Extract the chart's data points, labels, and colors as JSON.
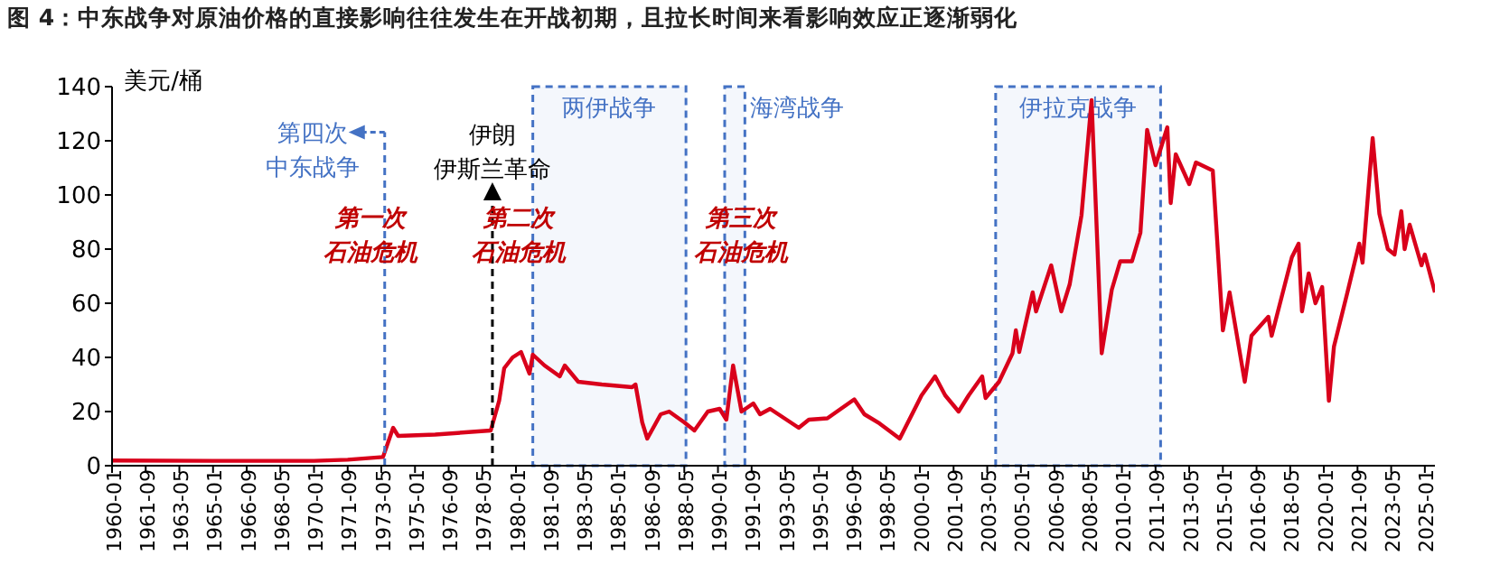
{
  "chart_data": {
    "type": "line",
    "title": "图 4：中东战争对原油价格的直接影响往往发生在开战初期，且拉长时间来看影响效应正逐渐弱化",
    "ylabel": "美元/桶",
    "x": [
      "1960-01",
      "1965-01",
      "1970-01",
      "1971-09",
      "1973-06",
      "1973-12",
      "1974-03",
      "1976-01",
      "1978-10",
      "1979-03",
      "1979-06",
      "1979-11",
      "1980-04",
      "1980-09",
      "1980-11",
      "1981-06",
      "1982-03",
      "1982-06",
      "1983-02",
      "1984-04",
      "1985-10",
      "1985-12",
      "1986-04",
      "1986-07",
      "1987-03",
      "1987-08",
      "1988-05",
      "1988-11",
      "1989-07",
      "1990-02",
      "1990-06",
      "1990-10",
      "1991-03",
      "1991-10",
      "1992-02",
      "1992-08",
      "1994-01",
      "1994-07",
      "1995-06",
      "1996-10",
      "1997-04",
      "1998-01",
      "1999-01",
      "2000-02",
      "2000-10",
      "2001-04",
      "2001-12",
      "2002-06",
      "2003-02",
      "2003-04",
      "2003-12",
      "2004-08",
      "2004-10",
      "2004-12",
      "2005-08",
      "2005-10",
      "2006-07",
      "2007-01",
      "2007-06",
      "2007-09",
      "2008-01",
      "2008-07",
      "2009-01",
      "2009-07",
      "2009-12",
      "2010-07",
      "2010-12",
      "2011-04",
      "2011-09",
      "2012-04",
      "2012-06",
      "2012-09",
      "2013-05",
      "2013-09",
      "2014-07",
      "2015-01",
      "2015-05",
      "2016-02",
      "2016-06",
      "2017-04",
      "2017-06",
      "2018-06",
      "2018-10",
      "2018-12",
      "2019-04",
      "2019-08",
      "2019-12",
      "2020-04",
      "2020-07",
      "2021-03",
      "2021-10",
      "2021-12",
      "2022-04",
      "2022-06",
      "2022-10",
      "2023-03",
      "2023-07",
      "2023-11",
      "2024-01",
      "2024-04",
      "2024-11",
      "2025-01",
      "2025-07"
    ],
    "series": [
      {
        "color": "#d9001b",
        "values": [
          1.9,
          1.8,
          1.8,
          2.2,
          3.2,
          14,
          11,
          11.5,
          13,
          24,
          36,
          40,
          42,
          34,
          41,
          37,
          33,
          37,
          31,
          30,
          29,
          30,
          16,
          10,
          19,
          20,
          16,
          13,
          20,
          21,
          17,
          37,
          20,
          23,
          19,
          21,
          14,
          17,
          17.5,
          24.5,
          19,
          15.6,
          10,
          26,
          33,
          26,
          20,
          26,
          33,
          25,
          31,
          41.5,
          50,
          42,
          64,
          57,
          74,
          57,
          67,
          78,
          92.5,
          135,
          41.5,
          65,
          75.5,
          75.5,
          86,
          124,
          111,
          125,
          97,
          115,
          104,
          112,
          109,
          50,
          64,
          31,
          48,
          55,
          48,
          77,
          82,
          57,
          71,
          60,
          66,
          24,
          44,
          64,
          82,
          75,
          106,
          121,
          93,
          80,
          78,
          94,
          80,
          89,
          74,
          78,
          64
        ]
      }
    ],
    "xlim": [
      "1960-01",
      "2025-07"
    ],
    "xticks": [
      "1960-01",
      "1961-09",
      "1963-05",
      "1965-01",
      "1966-09",
      "1968-05",
      "1970-01",
      "1971-09",
      "1973-05",
      "1975-01",
      "1976-09",
      "1978-05",
      "1980-01",
      "1981-09",
      "1983-05",
      "1985-01",
      "1986-09",
      "1988-05",
      "1990-01",
      "1991-09",
      "1993-05",
      "1995-01",
      "1996-09",
      "1998-05",
      "2000-01",
      "2001-09",
      "2003-05",
      "2005-01",
      "2006-09",
      "2008-05",
      "2010-01",
      "2011-09",
      "2013-05",
      "2015-01",
      "2016-09",
      "2018-05",
      "2020-01",
      "2021-09",
      "2023-05",
      "2025-01"
    ],
    "ylim": [
      0,
      140
    ],
    "yticks": [
      0,
      20,
      40,
      60,
      80,
      100,
      120,
      140
    ],
    "grid": false,
    "legend": false,
    "marker": "none",
    "line_style": "solid",
    "ref_lines": [
      {
        "axis": "x",
        "value": "1973-07",
        "label": "第四次中东战争",
        "color": "#4472c4",
        "line_style": "dashed"
      },
      {
        "axis": "x",
        "value": "1978-11",
        "label": "伊朗伊斯兰革命",
        "color": "#000000",
        "line_style": "dashed"
      }
    ],
    "bands": [
      {
        "axis": "x",
        "from": "1980-11",
        "to": "1988-06",
        "label": "两伊战争",
        "color": "#4472c4"
      },
      {
        "axis": "x",
        "from": "1990-05",
        "to": "1991-05",
        "label": "海湾战争",
        "color": "#4472c4"
      },
      {
        "axis": "x",
        "from": "2003-10",
        "to": "2011-12",
        "label": "伊拉克战争",
        "color": "#4472c4"
      }
    ],
    "annotations": [
      "第一次石油危机",
      "第二次石油危机",
      "第三次石油危机"
    ]
  }
}
